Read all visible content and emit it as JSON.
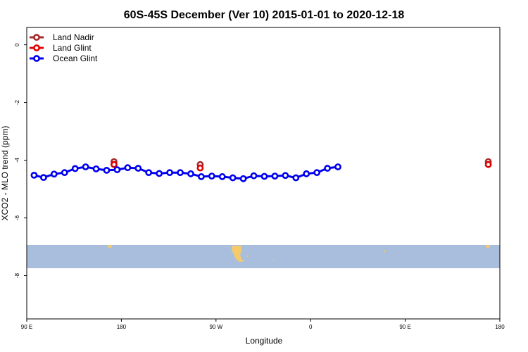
{
  "chart_data": {
    "type": "line",
    "title": "60S-45S December (Ver 10)   2015-01-01 to 2020-12-18",
    "xlabel": "Longitude",
    "ylabel": "XCO2 - MLO trend (ppm)",
    "xlim": [
      90,
      450
    ],
    "ylim": [
      -9.5,
      0.6
    ],
    "x_ticks": [
      {
        "value": 90,
        "label": "90 E"
      },
      {
        "value": 180,
        "label": "180"
      },
      {
        "value": 270,
        "label": "90 W"
      },
      {
        "value": 360,
        "label": "0"
      },
      {
        "value": 450,
        "label": "90 E"
      },
      {
        "value": 540,
        "label": "180"
      }
    ],
    "y_ticks": [
      {
        "value": 0,
        "label": "0"
      },
      {
        "value": -2,
        "label": "-2"
      },
      {
        "value": -4,
        "label": "-4"
      },
      {
        "value": -6,
        "label": "-6"
      },
      {
        "value": -8,
        "label": "-8"
      }
    ],
    "grid": false,
    "legend_position": "top-left",
    "map_band": {
      "lat_range": [
        -60,
        -45
      ],
      "ocean_color": "#a9bedd",
      "land_color": "#f5cb6a"
    },
    "series": [
      {
        "name": "Land Nadir",
        "color": "#a52a2a",
        "points": [
          [
            173,
            -4.05
          ],
          [
            255,
            -4.15
          ],
          [
            529,
            -4.05
          ]
        ]
      },
      {
        "name": "Land Glint",
        "color": "#e00000",
        "points": [
          [
            173,
            -4.15
          ],
          [
            255,
            -4.27
          ],
          [
            529,
            -4.15
          ]
        ]
      },
      {
        "name": "Ocean Glint",
        "color": "#0000ee",
        "points": [
          [
            97,
            -4.52
          ],
          [
            106,
            -4.6
          ],
          [
            116,
            -4.48
          ],
          [
            126,
            -4.43
          ],
          [
            136,
            -4.29
          ],
          [
            146,
            -4.23
          ],
          [
            156,
            -4.3
          ],
          [
            166,
            -4.35
          ],
          [
            176,
            -4.33
          ],
          [
            186,
            -4.26
          ],
          [
            196,
            -4.28
          ],
          [
            206,
            -4.43
          ],
          [
            216,
            -4.46
          ],
          [
            226,
            -4.43
          ],
          [
            236,
            -4.43
          ],
          [
            246,
            -4.47
          ],
          [
            256,
            -4.57
          ],
          [
            266,
            -4.55
          ],
          [
            276,
            -4.57
          ],
          [
            286,
            -4.61
          ],
          [
            296,
            -4.64
          ],
          [
            306,
            -4.54
          ],
          [
            316,
            -4.56
          ],
          [
            326,
            -4.55
          ],
          [
            336,
            -4.53
          ],
          [
            346,
            -4.61
          ],
          [
            356,
            -4.47
          ],
          [
            366,
            -4.43
          ],
          [
            376,
            -4.28
          ],
          [
            386,
            -4.23
          ]
        ]
      }
    ]
  }
}
